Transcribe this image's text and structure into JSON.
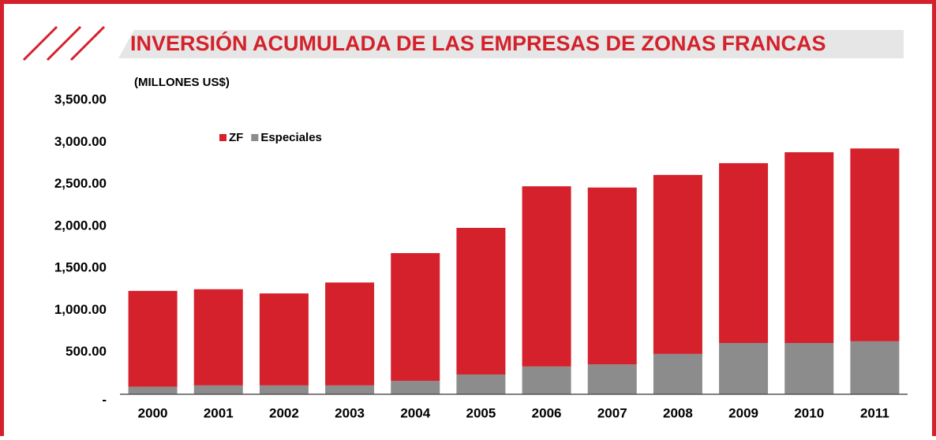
{
  "chart_data": {
    "type": "stacked_bar",
    "title": "INVERSIÓN ACUMULADA DE LAS EMPRESAS DE ZONAS FRANCAS",
    "subtitle": "(MILLONES US$)",
    "categories": [
      "2000",
      "2001",
      "2002",
      "2003",
      "2004",
      "2005",
      "2006",
      "2007",
      "2008",
      "2009",
      "2010",
      "2011"
    ],
    "series": [
      {
        "name": "ZF",
        "color": "#d4212b",
        "values": [
          1140,
          1145,
          1095,
          1225,
          1520,
          1745,
          2145,
          2105,
          2130,
          2140,
          2270,
          2295
        ]
      },
      {
        "name": "Especiales",
        "color": "#8c8c8c",
        "values": [
          90,
          105,
          105,
          105,
          160,
          235,
          330,
          355,
          480,
          610,
          610,
          630
        ]
      }
    ],
    "ylim": [
      0,
      3500
    ],
    "yticks": [
      {
        "value": 0,
        "label": "-"
      },
      {
        "value": 500,
        "label": "500.00"
      },
      {
        "value": 1000,
        "label": "1,000.00"
      },
      {
        "value": 1500,
        "label": "1,500.00"
      },
      {
        "value": 2000,
        "label": "2,000.00"
      },
      {
        "value": 2500,
        "label": "2,500.00"
      },
      {
        "value": 3000,
        "label": "3,000.00"
      },
      {
        "value": 3500,
        "label": "3,500.00"
      }
    ],
    "grid": false
  }
}
